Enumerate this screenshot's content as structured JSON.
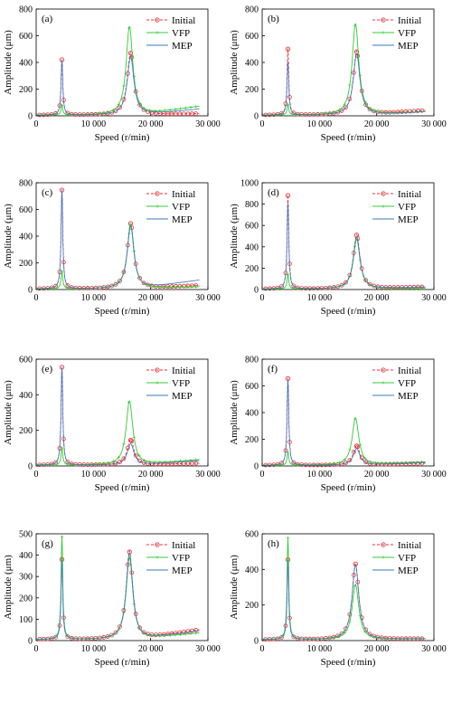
{
  "figure": {
    "legend": [
      "Initial",
      "VFP",
      "MEP"
    ],
    "ylabel": "Amplitude (μm)",
    "xlabel": "Speed (r/min)",
    "colors": {
      "Initial": "#e8333a",
      "VFP": "#33cc33",
      "MEP": "#3a78c2"
    }
  },
  "chart_data": [
    {
      "type": "line",
      "panel": "(a)",
      "xlim": [
        0,
        30000
      ],
      "ylim": [
        0,
        800
      ],
      "xticks": [
        "0",
        "10 000",
        "20 000",
        "30 000"
      ],
      "yticks": [
        "0",
        "200",
        "400",
        "600",
        "800"
      ],
      "legend_position": "top-right",
      "series": [
        {
          "name": "Initial",
          "peaks": [
            [
              4500,
              420
            ],
            [
              16500,
              470
            ]
          ],
          "end": [
            28500,
            15
          ]
        },
        {
          "name": "VFP",
          "peaks": [
            [
              4500,
              70
            ],
            [
              16300,
              665
            ]
          ],
          "end": [
            28500,
            70
          ]
        },
        {
          "name": "MEP",
          "peaks": [
            [
              4500,
              410
            ],
            [
              16500,
              440
            ]
          ],
          "end": [
            28500,
            50
          ]
        }
      ]
    },
    {
      "type": "line",
      "panel": "(b)",
      "xlim": [
        0,
        30000
      ],
      "ylim": [
        0,
        800
      ],
      "xticks": [
        "0",
        "10 000",
        "20 000",
        "30 000"
      ],
      "yticks": [
        "0",
        "200",
        "400",
        "600",
        "800"
      ],
      "legend_position": "top-right",
      "series": [
        {
          "name": "Initial",
          "peaks": [
            [
              4500,
              500
            ],
            [
              16500,
              480
            ]
          ],
          "end": [
            28500,
            40
          ]
        },
        {
          "name": "VFP",
          "peaks": [
            [
              4500,
              75
            ],
            [
              16300,
              685
            ]
          ],
          "end": [
            28500,
            30
          ]
        },
        {
          "name": "MEP",
          "peaks": [
            [
              4500,
              400
            ],
            [
              16500,
              460
            ]
          ],
          "end": [
            28500,
            30
          ]
        }
      ]
    },
    {
      "type": "line",
      "panel": "(c)",
      "xlim": [
        0,
        30000
      ],
      "ylim": [
        0,
        800
      ],
      "xticks": [
        "0",
        "10 000",
        "20 000",
        "30 000"
      ],
      "yticks": [
        "0",
        "200",
        "400",
        "600",
        "800"
      ],
      "legend_position": "top-right",
      "series": [
        {
          "name": "Initial",
          "peaks": [
            [
              4500,
              745
            ],
            [
              16500,
              495
            ]
          ],
          "end": [
            28500,
            30
          ]
        },
        {
          "name": "VFP",
          "peaks": [
            [
              4500,
              130
            ],
            [
              16500,
              490
            ]
          ],
          "end": [
            28500,
            20
          ]
        },
        {
          "name": "MEP",
          "peaks": [
            [
              4500,
              740
            ],
            [
              16500,
              470
            ]
          ],
          "end": [
            28500,
            70
          ]
        }
      ]
    },
    {
      "type": "line",
      "panel": "(d)",
      "xlim": [
        0,
        30000
      ],
      "ylim": [
        0,
        1000
      ],
      "xticks": [
        "0",
        "10 000",
        "20 000",
        "30 000"
      ],
      "yticks": [
        "0",
        "200",
        "400",
        "600",
        "800",
        "1000"
      ],
      "legend_position": "top-right",
      "series": [
        {
          "name": "Initial",
          "peaks": [
            [
              4500,
              880
            ],
            [
              16500,
              510
            ]
          ],
          "end": [
            28500,
            25
          ]
        },
        {
          "name": "VFP",
          "peaks": [
            [
              4500,
              130
            ],
            [
              16500,
              470
            ]
          ],
          "end": [
            28500,
            10
          ]
        },
        {
          "name": "MEP",
          "peaks": [
            [
              4500,
              800
            ],
            [
              16500,
              490
            ]
          ],
          "end": [
            28500,
            20
          ]
        }
      ]
    },
    {
      "type": "line",
      "panel": "(e)",
      "xlim": [
        0,
        30000
      ],
      "ylim": [
        0,
        600
      ],
      "xticks": [
        "0",
        "10 000",
        "20 000",
        "30 000"
      ],
      "yticks": [
        "0",
        "200",
        "400",
        "600"
      ],
      "legend_position": "top-right",
      "series": [
        {
          "name": "Initial",
          "peaks": [
            [
              4500,
              555
            ],
            [
              16500,
              145
            ]
          ],
          "end": [
            28500,
            15
          ]
        },
        {
          "name": "VFP",
          "peaks": [
            [
              4500,
              95
            ],
            [
              16300,
              360
            ]
          ],
          "end": [
            28500,
            35
          ]
        },
        {
          "name": "MEP",
          "peaks": [
            [
              4500,
              550
            ],
            [
              16500,
              120
            ]
          ],
          "end": [
            28500,
            30
          ]
        }
      ]
    },
    {
      "type": "line",
      "panel": "(f)",
      "xlim": [
        0,
        30000
      ],
      "ylim": [
        0,
        800
      ],
      "xticks": [
        "0",
        "10 000",
        "20 000",
        "30 000"
      ],
      "yticks": [
        "0",
        "200",
        "400",
        "600",
        "800"
      ],
      "legend_position": "top-right",
      "series": [
        {
          "name": "Initial",
          "peaks": [
            [
              4500,
              655
            ],
            [
              16500,
              150
            ]
          ],
          "end": [
            28500,
            20
          ]
        },
        {
          "name": "VFP",
          "peaks": [
            [
              4500,
              95
            ],
            [
              16300,
              355
            ]
          ],
          "end": [
            28500,
            30
          ]
        },
        {
          "name": "MEP",
          "peaks": [
            [
              4500,
              640
            ],
            [
              16500,
              125
            ]
          ],
          "end": [
            28500,
            25
          ]
        }
      ]
    },
    {
      "type": "line",
      "panel": "(g)",
      "xlim": [
        0,
        30000
      ],
      "ylim": [
        0,
        500
      ],
      "xticks": [
        "0",
        "10 000",
        "20 000",
        "30 000"
      ],
      "yticks": [
        "0",
        "100",
        "200",
        "300",
        "400",
        "500"
      ],
      "legend_position": "top-right",
      "series": [
        {
          "name": "Initial",
          "peaks": [
            [
              4500,
              380
            ],
            [
              16300,
              415
            ]
          ],
          "end": [
            28500,
            50
          ]
        },
        {
          "name": "VFP",
          "peaks": [
            [
              4500,
              480
            ],
            [
              16300,
              385
            ]
          ],
          "end": [
            28500,
            35
          ]
        },
        {
          "name": "MEP",
          "peaks": [
            [
              4500,
              375
            ],
            [
              16300,
              405
            ]
          ],
          "end": [
            28500,
            45
          ]
        }
      ]
    },
    {
      "type": "line",
      "panel": "(h)",
      "xlim": [
        0,
        30000
      ],
      "ylim": [
        0,
        600
      ],
      "xticks": [
        "0",
        "10 000",
        "20 000",
        "30 000"
      ],
      "yticks": [
        "0",
        "200",
        "400",
        "600"
      ],
      "legend_position": "top-right",
      "series": [
        {
          "name": "Initial",
          "peaks": [
            [
              4500,
              455
            ],
            [
              16300,
              430
            ]
          ],
          "end": [
            28500,
            10
          ]
        },
        {
          "name": "VFP",
          "peaks": [
            [
              4500,
              570
            ],
            [
              16300,
              310
            ]
          ],
          "end": [
            28500,
            10
          ]
        },
        {
          "name": "MEP",
          "peaks": [
            [
              4500,
              445
            ],
            [
              16300,
              420
            ]
          ],
          "end": [
            28500,
            10
          ]
        }
      ]
    }
  ]
}
